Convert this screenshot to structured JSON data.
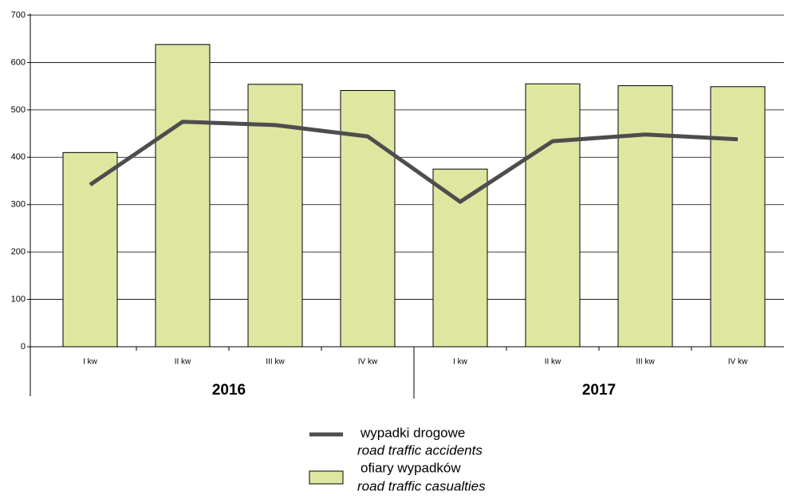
{
  "chart_data": {
    "type": "bar_line",
    "categories": [
      "I kw",
      "II kw",
      "III kw",
      "IV kw",
      "I kw",
      "II kw",
      "III kw",
      "IV kw"
    ],
    "groups": [
      "2016",
      "2017"
    ],
    "series": [
      {
        "name": "ofiary wypadków",
        "name_en": "road traffic casualties",
        "type": "bar",
        "color": "#dfe6a0",
        "values": [
          410,
          638,
          554,
          541,
          375,
          555,
          551,
          549
        ]
      },
      {
        "name": "wypadki drogowe",
        "name_en": "road traffic accidents",
        "type": "line",
        "color": "#4d4d4d",
        "values": [
          342,
          475,
          468,
          444,
          306,
          434,
          448,
          438
        ]
      }
    ],
    "ylim": [
      0,
      700
    ],
    "yticks": [
      0,
      100,
      200,
      300,
      400,
      500,
      600,
      700
    ],
    "grid": true,
    "legend": "bottom"
  }
}
